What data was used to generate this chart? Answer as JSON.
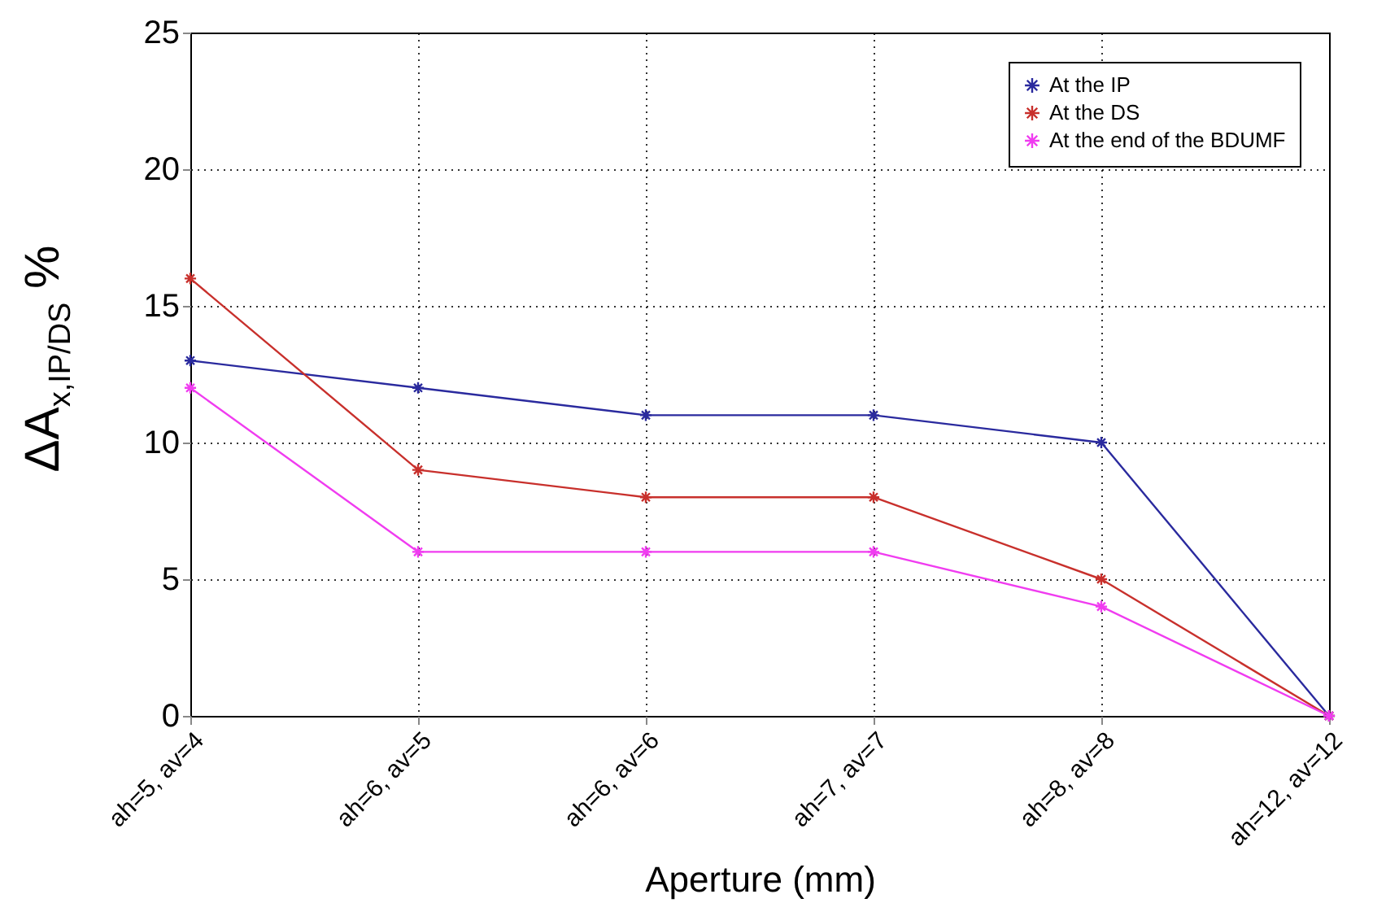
{
  "chart_data": {
    "type": "line",
    "xlabel": "Aperture (mm)",
    "ylabel": "ΔA$_{x,IP/DS}$ %",
    "categories": [
      "ah=5, av=4",
      "ah=6, av=5",
      "ah=6, av=6",
      "ah=7, av=7",
      "ah=8, av=8",
      "ah=12, av=12"
    ],
    "series": [
      {
        "name": "At the IP",
        "color": "#2a2a9e",
        "values": [
          13,
          12,
          11,
          11,
          10,
          0
        ]
      },
      {
        "name": "At the DS",
        "color": "#c8302c",
        "values": [
          16,
          9,
          8,
          8,
          5,
          0
        ]
      },
      {
        "name": "At the end of the BDUMF",
        "color": "#f03cf0",
        "values": [
          12,
          6,
          6,
          6,
          4,
          0
        ]
      }
    ],
    "ylim": [
      0,
      25
    ],
    "yticks": [
      0,
      5,
      10,
      15,
      20,
      25
    ],
    "grid": true,
    "legend": "top right",
    "marker": "cross",
    "line_style": "solid"
  }
}
